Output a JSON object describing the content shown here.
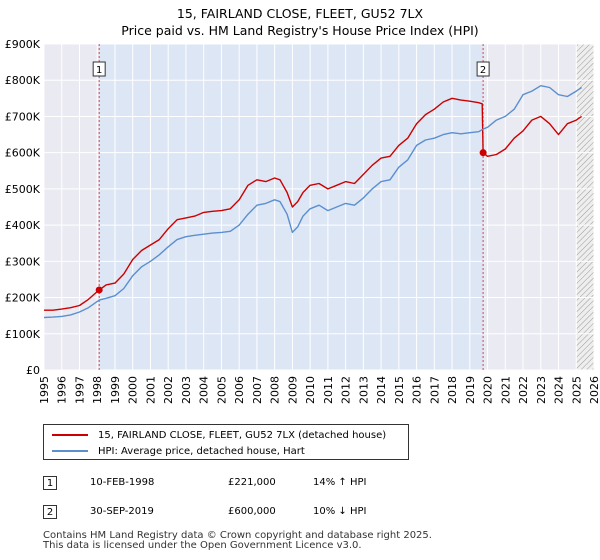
{
  "title_line1": "15, FAIRLAND CLOSE, FLEET, GU52 7LX",
  "title_line2": "Price paid vs. HM Land Registry's House Price Index (HPI)",
  "legend": {
    "property_label": "15, FAIRLAND CLOSE, FLEET, GU52 7LX (detached house)",
    "hpi_label": "HPI: Average price, detached house, Hart"
  },
  "transactions": [
    {
      "num": "1",
      "date": "10-FEB-1998",
      "price": "£221,000",
      "hpi_change": "14% ↑ HPI"
    },
    {
      "num": "2",
      "date": "30-SEP-2019",
      "price": "£600,000",
      "hpi_change": "10% ↓ HPI"
    }
  ],
  "footer": {
    "line1": "Contains HM Land Registry data © Crown copyright and database right 2025.",
    "line2": "This data is licensed under the Open Government Licence v3.0."
  },
  "colors": {
    "property": "#cc0000",
    "hpi": "#5b8fd0",
    "shade": "#dde6f5",
    "grid": "#ffffff",
    "marker": "#cc0000"
  },
  "chart_data": {
    "type": "line",
    "title": "15, FAIRLAND CLOSE, FLEET, GU52 7LX — Price paid vs. HM Land Registry's House Price Index (HPI)",
    "xlim": [
      1995,
      2026
    ],
    "ylim": [
      0,
      900000
    ],
    "x_ticks": [
      "1995",
      "1996",
      "1997",
      "1998",
      "1999",
      "2000",
      "2001",
      "2002",
      "2003",
      "2004",
      "2005",
      "2006",
      "2007",
      "2008",
      "2009",
      "2010",
      "2011",
      "2012",
      "2013",
      "2014",
      "2015",
      "2016",
      "2017",
      "2018",
      "2019",
      "2020",
      "2021",
      "2022",
      "2023",
      "2024",
      "2025",
      "2026"
    ],
    "y_ticks": [
      {
        "value": 0,
        "label": "£0"
      },
      {
        "value": 100000,
        "label": "£100K"
      },
      {
        "value": 200000,
        "label": "£200K"
      },
      {
        "value": 300000,
        "label": "£300K"
      },
      {
        "value": 400000,
        "label": "£400K"
      },
      {
        "value": 500000,
        "label": "£500K"
      },
      {
        "value": 600000,
        "label": "£600K"
      },
      {
        "value": 700000,
        "label": "£700K"
      },
      {
        "value": 800000,
        "label": "£800K"
      },
      {
        "value": 900000,
        "label": "£900K"
      }
    ],
    "shaded_range": [
      1998.11,
      2019.75
    ],
    "hatched_from": 2025.0,
    "event_lines": [
      {
        "x": 1998.11,
        "label": "1"
      },
      {
        "x": 2019.75,
        "label": "2"
      }
    ],
    "sale_points": [
      {
        "x": 1998.11,
        "y": 221000
      },
      {
        "x": 2019.75,
        "y": 600000
      }
    ],
    "series": [
      {
        "name": "15, FAIRLAND CLOSE, FLEET, GU52 7LX (detached house)",
        "color": "#cc0000",
        "x": [
          1995.0,
          1995.5,
          1996.0,
          1996.5,
          1997.0,
          1997.5,
          1998.11,
          1998.5,
          1999.0,
          1999.5,
          2000.0,
          2000.5,
          2001.0,
          2001.5,
          2002.0,
          2002.5,
          2003.0,
          2003.5,
          2004.0,
          2004.5,
          2005.0,
          2005.5,
          2006.0,
          2006.5,
          2007.0,
          2007.5,
          2008.0,
          2008.3,
          2008.7,
          2009.0,
          2009.3,
          2009.6,
          2010.0,
          2010.5,
          2011.0,
          2011.5,
          2012.0,
          2012.5,
          2013.0,
          2013.5,
          2014.0,
          2014.5,
          2015.0,
          2015.5,
          2016.0,
          2016.5,
          2017.0,
          2017.5,
          2018.0,
          2018.5,
          2019.0,
          2019.5,
          2019.7,
          2019.75,
          2020.0,
          2020.5,
          2021.0,
          2021.5,
          2022.0,
          2022.5,
          2023.0,
          2023.5,
          2024.0,
          2024.5,
          2025.0,
          2025.3
        ],
        "y": [
          165000,
          165000,
          168000,
          172000,
          178000,
          195000,
          221000,
          235000,
          240000,
          265000,
          305000,
          330000,
          345000,
          360000,
          390000,
          415000,
          420000,
          425000,
          435000,
          438000,
          440000,
          445000,
          470000,
          510000,
          525000,
          520000,
          530000,
          525000,
          490000,
          450000,
          465000,
          490000,
          510000,
          515000,
          500000,
          510000,
          520000,
          515000,
          540000,
          565000,
          585000,
          590000,
          620000,
          640000,
          680000,
          705000,
          720000,
          740000,
          750000,
          745000,
          742000,
          738000,
          735000,
          600000,
          590000,
          595000,
          610000,
          640000,
          660000,
          690000,
          700000,
          680000,
          650000,
          680000,
          690000,
          700000
        ]
      },
      {
        "name": "HPI: Average price, detached house, Hart",
        "color": "#5b8fd0",
        "x": [
          1995.0,
          1995.5,
          1996.0,
          1996.5,
          1997.0,
          1997.5,
          1998.11,
          1998.5,
          1999.0,
          1999.5,
          2000.0,
          2000.5,
          2001.0,
          2001.5,
          2002.0,
          2002.5,
          2003.0,
          2003.5,
          2004.0,
          2004.5,
          2005.0,
          2005.5,
          2006.0,
          2006.5,
          2007.0,
          2007.5,
          2008.0,
          2008.3,
          2008.7,
          2009.0,
          2009.3,
          2009.6,
          2010.0,
          2010.5,
          2011.0,
          2011.5,
          2012.0,
          2012.5,
          2013.0,
          2013.5,
          2014.0,
          2014.5,
          2015.0,
          2015.5,
          2016.0,
          2016.5,
          2017.0,
          2017.5,
          2018.0,
          2018.5,
          2019.0,
          2019.5,
          2019.75,
          2020.0,
          2020.5,
          2021.0,
          2021.5,
          2022.0,
          2022.5,
          2023.0,
          2023.5,
          2024.0,
          2024.5,
          2025.0,
          2025.3
        ],
        "y": [
          145000,
          146000,
          148000,
          152000,
          160000,
          172000,
          193000,
          198000,
          205000,
          225000,
          260000,
          285000,
          300000,
          318000,
          340000,
          360000,
          368000,
          372000,
          375000,
          378000,
          380000,
          383000,
          400000,
          430000,
          455000,
          460000,
          470000,
          465000,
          430000,
          380000,
          395000,
          425000,
          445000,
          455000,
          440000,
          450000,
          460000,
          455000,
          475000,
          500000,
          520000,
          525000,
          560000,
          580000,
          620000,
          635000,
          640000,
          650000,
          655000,
          652000,
          655000,
          658000,
          665000,
          670000,
          690000,
          700000,
          720000,
          760000,
          770000,
          785000,
          780000,
          760000,
          755000,
          770000,
          780000
        ]
      }
    ]
  }
}
